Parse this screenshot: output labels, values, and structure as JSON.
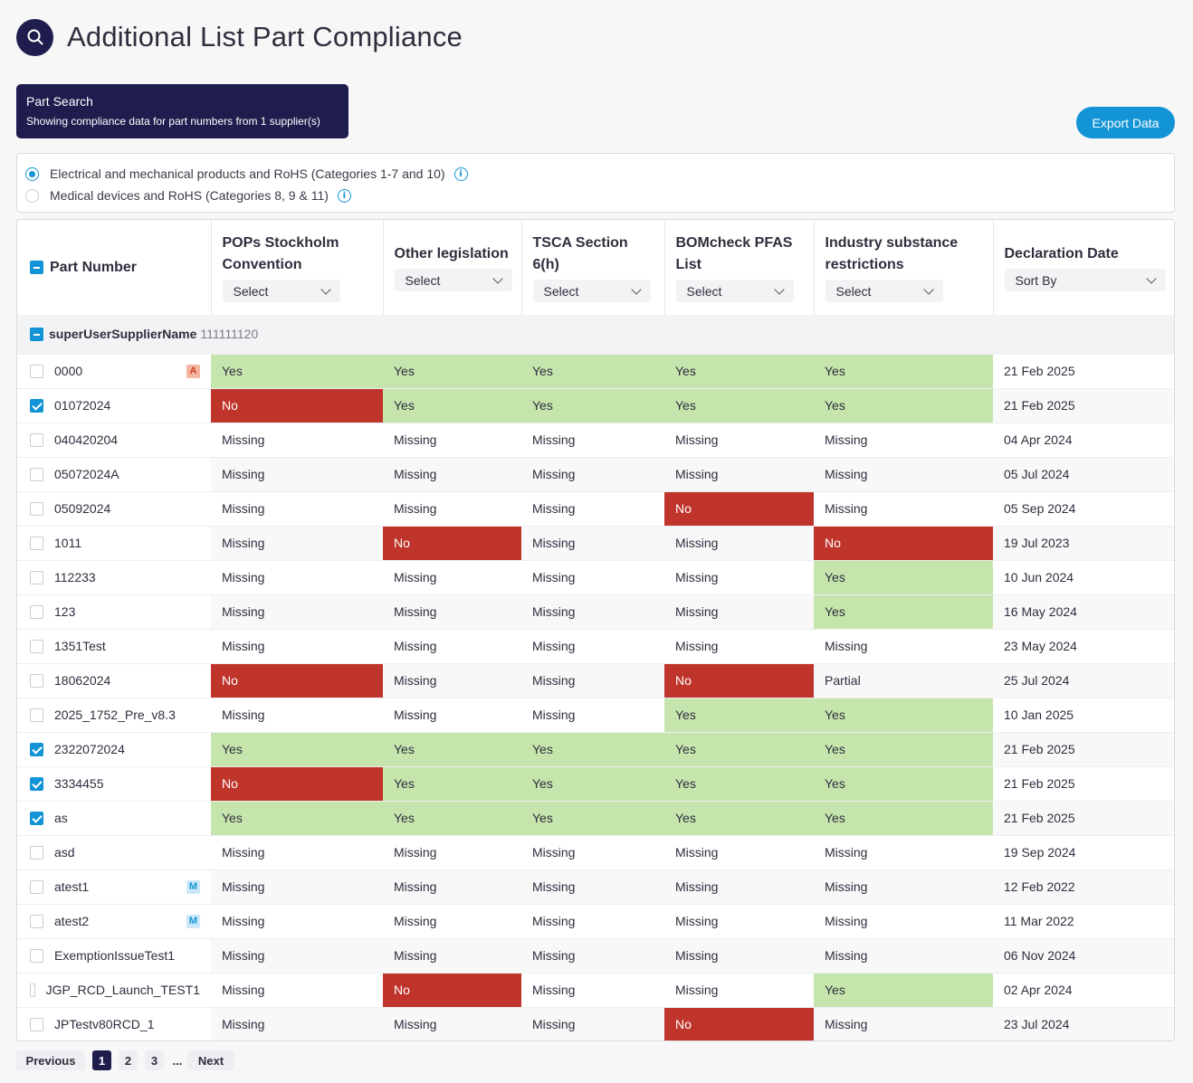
{
  "page": {
    "title": "Additional List Part Compliance"
  },
  "search_box": {
    "title": "Part Search",
    "subtitle": "Showing compliance data for part numbers from 1 supplier(s)"
  },
  "export_label": "Export Data",
  "categories": [
    {
      "label": "Electrical and mechanical products and RoHS (Categories 1-7 and 10)",
      "selected": true
    },
    {
      "label": "Medical devices and RoHS (Categories 8, 9 & 11)",
      "selected": false
    }
  ],
  "columns": {
    "part": "Part Number",
    "pops": {
      "label": "POPs Stockholm Convention",
      "filter": "Select"
    },
    "other": {
      "label": "Other legislation",
      "filter": "Select"
    },
    "tsca": {
      "label": "TSCA Section 6(h)",
      "filter": "Select"
    },
    "pfas": {
      "label": "BOMcheck PFAS List",
      "filter": "Select"
    },
    "industry": {
      "label": "Industry substance restrictions",
      "filter": "Select"
    },
    "date": {
      "label": "Declaration Date",
      "filter": "Sort By"
    }
  },
  "group": {
    "name": "superUserSupplierName",
    "id": "111111120"
  },
  "rows": [
    {
      "part": "0000",
      "checked": false,
      "tag": "A",
      "pops": "Yes",
      "other": "Yes",
      "tsca": "Yes",
      "pfas": "Yes",
      "industry": "Yes",
      "date": "21 Feb 2025"
    },
    {
      "part": "01072024",
      "checked": true,
      "tag": "",
      "pops": "No",
      "other": "Yes",
      "tsca": "Yes",
      "pfas": "Yes",
      "industry": "Yes",
      "date": "21 Feb 2025"
    },
    {
      "part": "040420204",
      "checked": false,
      "tag": "",
      "pops": "Missing",
      "other": "Missing",
      "tsca": "Missing",
      "pfas": "Missing",
      "industry": "Missing",
      "date": "04 Apr 2024"
    },
    {
      "part": "05072024A",
      "checked": false,
      "tag": "",
      "pops": "Missing",
      "other": "Missing",
      "tsca": "Missing",
      "pfas": "Missing",
      "industry": "Missing",
      "date": "05 Jul 2024"
    },
    {
      "part": "05092024",
      "checked": false,
      "tag": "",
      "pops": "Missing",
      "other": "Missing",
      "tsca": "Missing",
      "pfas": "No",
      "industry": "Missing",
      "date": "05 Sep 2024"
    },
    {
      "part": "1011",
      "checked": false,
      "tag": "",
      "pops": "Missing",
      "other": "No",
      "tsca": "Missing",
      "pfas": "Missing",
      "industry": "No",
      "date": "19 Jul 2023"
    },
    {
      "part": "112233",
      "checked": false,
      "tag": "",
      "pops": "Missing",
      "other": "Missing",
      "tsca": "Missing",
      "pfas": "Missing",
      "industry": "Yes",
      "date": "10 Jun 2024"
    },
    {
      "part": "123",
      "checked": false,
      "tag": "",
      "pops": "Missing",
      "other": "Missing",
      "tsca": "Missing",
      "pfas": "Missing",
      "industry": "Yes",
      "date": "16 May 2024"
    },
    {
      "part": "1351Test",
      "checked": false,
      "tag": "",
      "pops": "Missing",
      "other": "Missing",
      "tsca": "Missing",
      "pfas": "Missing",
      "industry": "Missing",
      "date": "23 May 2024"
    },
    {
      "part": "18062024",
      "checked": false,
      "tag": "",
      "pops": "No",
      "other": "Missing",
      "tsca": "Missing",
      "pfas": "No",
      "industry": "Partial",
      "date": "25 Jul 2024"
    },
    {
      "part": "2025_1752_Pre_v8.3",
      "checked": false,
      "tag": "",
      "pops": "Missing",
      "other": "Missing",
      "tsca": "Missing",
      "pfas": "Yes",
      "industry": "Yes",
      "date": "10 Jan 2025"
    },
    {
      "part": "2322072024",
      "checked": true,
      "tag": "",
      "pops": "Yes",
      "other": "Yes",
      "tsca": "Yes",
      "pfas": "Yes",
      "industry": "Yes",
      "date": "21 Feb 2025"
    },
    {
      "part": "3334455",
      "checked": true,
      "tag": "",
      "pops": "No",
      "other": "Yes",
      "tsca": "Yes",
      "pfas": "Yes",
      "industry": "Yes",
      "date": "21 Feb 2025"
    },
    {
      "part": "as",
      "checked": true,
      "tag": "",
      "pops": "Yes",
      "other": "Yes",
      "tsca": "Yes",
      "pfas": "Yes",
      "industry": "Yes",
      "date": "21 Feb 2025"
    },
    {
      "part": "asd",
      "checked": false,
      "tag": "",
      "pops": "Missing",
      "other": "Missing",
      "tsca": "Missing",
      "pfas": "Missing",
      "industry": "Missing",
      "date": "19 Sep 2024"
    },
    {
      "part": "atest1",
      "checked": false,
      "tag": "M",
      "pops": "Missing",
      "other": "Missing",
      "tsca": "Missing",
      "pfas": "Missing",
      "industry": "Missing",
      "date": "12 Feb 2022"
    },
    {
      "part": "atest2",
      "checked": false,
      "tag": "M",
      "pops": "Missing",
      "other": "Missing",
      "tsca": "Missing",
      "pfas": "Missing",
      "industry": "Missing",
      "date": "11 Mar 2022"
    },
    {
      "part": "ExemptionIssueTest1",
      "checked": false,
      "tag": "",
      "pops": "Missing",
      "other": "Missing",
      "tsca": "Missing",
      "pfas": "Missing",
      "industry": "Missing",
      "date": "06 Nov 2024"
    },
    {
      "part": "JGP_RCD_Launch_TEST1",
      "checked": false,
      "tag": "",
      "pops": "Missing",
      "other": "No",
      "tsca": "Missing",
      "pfas": "Missing",
      "industry": "Yes",
      "date": "02 Apr 2024"
    },
    {
      "part": "JPTestv80RCD_1",
      "checked": false,
      "tag": "",
      "pops": "Missing",
      "other": "Missing",
      "tsca": "Missing",
      "pfas": "No",
      "industry": "Missing",
      "date": "23 Jul 2024"
    }
  ],
  "pagination": {
    "previous": "Previous",
    "pages": [
      "1",
      "2",
      "3"
    ],
    "current": "1",
    "ellipsis": "...",
    "next": "Next"
  },
  "colors": {
    "navy": "#1f1d4e",
    "accent": "#1294d6",
    "yes": "#c6e5ad",
    "no": "#c0352b"
  }
}
